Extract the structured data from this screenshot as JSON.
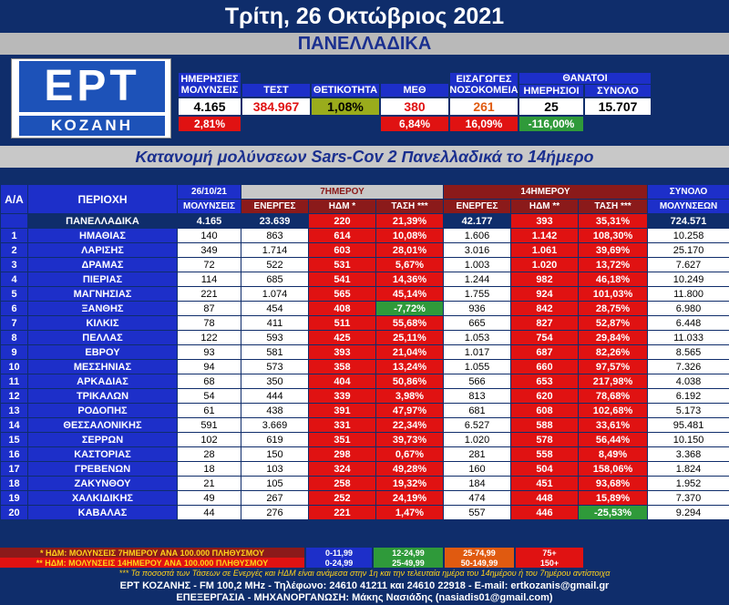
{
  "header": {
    "date": "Τρίτη, 26 Οκτώβριος 2021",
    "subtitle": "ΠΑΝΕΛΛΑΔΙΚΑ"
  },
  "logo": {
    "line1": "ΕΡΤ",
    "line2": "ΚΟΖΑΝΗ"
  },
  "top_stats": {
    "daily_label": "ΗΜΕΡΗΣΙΕΣ ΜΟΛΥΝΣΕΙΣ",
    "tests_label": "ΤΕΣΤ",
    "positivity_label": "ΘΕΤΙΚΟΤΗΤΑ",
    "icu_label": "ΜΕΘ",
    "admissions_label": "ΕΙΣΑΓΩΓΕΣ ΝΟΣΟΚΟΜΕΙΑ",
    "deaths_label": "ΘΑΝΑΤΟΙ",
    "deaths_daily_label": "ΗΜΕΡΗΣΙΟΙ",
    "deaths_total_label": "ΣΥΝΟΛΟ",
    "daily_value": "4.165",
    "tests_value": "384.967",
    "positivity_value": "1,08%",
    "icu_value": "380",
    "admissions_value": "261",
    "deaths_daily_value": "25",
    "deaths_total_value": "15.707",
    "daily_change": "2,81%",
    "icu_change": "6,84%",
    "admissions_change": "16,09%",
    "deaths_change": "-116,00%"
  },
  "table_title": "Κατανομή μολύνσεων Sars-Cov 2 Πανελλαδικά το 14ήμερο",
  "table_headers": {
    "aa": "Α/Α",
    "region": "ΠΕΡΙΟΧΗ",
    "date": "26/10/21",
    "infections": "ΜΟΛΥΝΣΕΙΣ",
    "days7": "7ΗΜΕΡΟΥ",
    "days14": "14ΗΜΕΡΟΥ",
    "active": "ΕΝΕΡΓΕΣ",
    "hdm7": "ΗΔΜ *",
    "trend": "ΤΑΣΗ ***",
    "active14": "ΕΝΕΡΓΕΣ",
    "hdm14": "ΗΔΜ **",
    "trend14": "ΤΑΣΗ ***",
    "total": "ΣΥΝΟΛΟ",
    "total2": "ΜΟΛΥΝΣΕΩΝ"
  },
  "national": {
    "name": "ΠΑΝΕΛΛΑΔΙΚΑ",
    "inf": "4.165",
    "act7": "23.639",
    "hdm7": "220",
    "tr7": "21,39%",
    "act14": "42.177",
    "hdm14": "393",
    "tr14": "35,31%",
    "total": "724.571"
  },
  "rows": [
    {
      "n": "1",
      "name": "ΗΜΑΘΙΑΣ",
      "inf": "140",
      "act7": "863",
      "hdm7": "614",
      "tr7": "10,08%",
      "act14": "1.606",
      "hdm14": "1.142",
      "tr14": "108,30%",
      "total": "10.258"
    },
    {
      "n": "2",
      "name": "ΛΑΡΙΣΗΣ",
      "inf": "349",
      "act7": "1.714",
      "hdm7": "603",
      "tr7": "28,01%",
      "act14": "3.016",
      "hdm14": "1.061",
      "tr14": "39,69%",
      "total": "25.170"
    },
    {
      "n": "3",
      "name": "ΔΡΑΜΑΣ",
      "inf": "72",
      "act7": "522",
      "hdm7": "531",
      "tr7": "5,67%",
      "act14": "1.003",
      "hdm14": "1.020",
      "tr14": "13,72%",
      "total": "7.627"
    },
    {
      "n": "4",
      "name": "ΠΙΕΡΙΑΣ",
      "inf": "114",
      "act7": "685",
      "hdm7": "541",
      "tr7": "14,36%",
      "act14": "1.244",
      "hdm14": "982",
      "tr14": "46,18%",
      "total": "10.249"
    },
    {
      "n": "5",
      "name": "ΜΑΓΝΗΣΙΑΣ",
      "inf": "221",
      "act7": "1.074",
      "hdm7": "565",
      "tr7": "45,14%",
      "act14": "1.755",
      "hdm14": "924",
      "tr14": "101,03%",
      "total": "11.800"
    },
    {
      "n": "6",
      "name": "ΞΑΝΘΗΣ",
      "inf": "87",
      "act7": "454",
      "hdm7": "408",
      "tr7": "-7,72%",
      "act14": "936",
      "hdm14": "842",
      "tr14": "28,75%",
      "total": "6.980"
    },
    {
      "n": "7",
      "name": "ΚΙΛΚΙΣ",
      "inf": "78",
      "act7": "411",
      "hdm7": "511",
      "tr7": "55,68%",
      "act14": "665",
      "hdm14": "827",
      "tr14": "52,87%",
      "total": "6.448"
    },
    {
      "n": "8",
      "name": "ΠΕΛΛΑΣ",
      "inf": "122",
      "act7": "593",
      "hdm7": "425",
      "tr7": "25,11%",
      "act14": "1.053",
      "hdm14": "754",
      "tr14": "29,84%",
      "total": "11.033"
    },
    {
      "n": "9",
      "name": "ΕΒΡΟΥ",
      "inf": "93",
      "act7": "581",
      "hdm7": "393",
      "tr7": "21,04%",
      "act14": "1.017",
      "hdm14": "687",
      "tr14": "82,26%",
      "total": "8.565"
    },
    {
      "n": "10",
      "name": "ΜΕΣΣΗΝΙΑΣ",
      "inf": "94",
      "act7": "573",
      "hdm7": "358",
      "tr7": "13,24%",
      "act14": "1.055",
      "hdm14": "660",
      "tr14": "97,57%",
      "total": "7.326"
    },
    {
      "n": "11",
      "name": "ΑΡΚΑΔΙΑΣ",
      "inf": "68",
      "act7": "350",
      "hdm7": "404",
      "tr7": "50,86%",
      "act14": "566",
      "hdm14": "653",
      "tr14": "217,98%",
      "total": "4.038"
    },
    {
      "n": "12",
      "name": "ΤΡΙΚΑΛΩΝ",
      "inf": "54",
      "act7": "444",
      "hdm7": "339",
      "tr7": "3,98%",
      "act14": "813",
      "hdm14": "620",
      "tr14": "78,68%",
      "total": "6.192"
    },
    {
      "n": "13",
      "name": "ΡΟΔΟΠΗΣ",
      "inf": "61",
      "act7": "438",
      "hdm7": "391",
      "tr7": "47,97%",
      "act14": "681",
      "hdm14": "608",
      "tr14": "102,68%",
      "total": "5.173"
    },
    {
      "n": "14",
      "name": "ΘΕΣΣΑΛΟΝΙΚΗΣ",
      "inf": "591",
      "act7": "3.669",
      "hdm7": "331",
      "tr7": "22,34%",
      "act14": "6.527",
      "hdm14": "588",
      "tr14": "33,61%",
      "total": "95.481"
    },
    {
      "n": "15",
      "name": "ΣΕΡΡΩΝ",
      "inf": "102",
      "act7": "619",
      "hdm7": "351",
      "tr7": "39,73%",
      "act14": "1.020",
      "hdm14": "578",
      "tr14": "56,44%",
      "total": "10.150"
    },
    {
      "n": "16",
      "name": "ΚΑΣΤΟΡΙΑΣ",
      "inf": "28",
      "act7": "150",
      "hdm7": "298",
      "tr7": "0,67%",
      "act14": "281",
      "hdm14": "558",
      "tr14": "8,49%",
      "total": "3.368"
    },
    {
      "n": "17",
      "name": "ΓΡΕΒΕΝΩΝ",
      "inf": "18",
      "act7": "103",
      "hdm7": "324",
      "tr7": "49,28%",
      "act14": "160",
      "hdm14": "504",
      "tr14": "158,06%",
      "total": "1.824"
    },
    {
      "n": "18",
      "name": "ΖΑΚΥΝΘΟΥ",
      "inf": "21",
      "act7": "105",
      "hdm7": "258",
      "tr7": "19,32%",
      "act14": "184",
      "hdm14": "451",
      "tr14": "93,68%",
      "total": "1.952"
    },
    {
      "n": "19",
      "name": "ΧΑΛΚΙΔΙΚΗΣ",
      "inf": "49",
      "act7": "267",
      "hdm7": "252",
      "tr7": "24,19%",
      "act14": "474",
      "hdm14": "448",
      "tr14": "15,89%",
      "total": "7.370"
    },
    {
      "n": "20",
      "name": "ΚΑΒΑΛΑΣ",
      "inf": "44",
      "act7": "276",
      "hdm7": "221",
      "tr7": "1,47%",
      "act14": "557",
      "hdm14": "446",
      "tr14": "-25,53%",
      "total": "9.294"
    }
  ],
  "legend": {
    "note7": "* ΗΔΜ: ΜΟΛΥΝΣΕΙΣ 7ΗΜΕΡΟΥ ΑΝΑ 100.000 ΠΛΗΘΥΣΜΟΥ",
    "note14": "** ΗΔΜ: ΜΟΛΥΝΣΕΙΣ 14ΗΜΕΡΟΥ ΑΝΑ 100.000 ΠΛΗΘΥΣΜΟΥ",
    "r7": [
      "0-11,99",
      "12-24,99",
      "25-74,99",
      "75+"
    ],
    "r14": [
      "0-24,99",
      "25-49,99",
      "50-149,99",
      "150+"
    ],
    "trend_note": "*** Τα ποσοστά των Τάσεων σε Ενεργές και ΗΔΜ είναι ανάμεσα στην 1η και την τελευταία ημέρα του 14ημέρου ή του 7ημέρου αντίστοιχα"
  },
  "footer": {
    "line1": "ΕΡΤ ΚΟΖΑΝΗΣ - FM 100,2 MHz - Τηλέφωνο: 24610 41211 και 24610 22918 - E-mail: ertkozanis@gmail.gr",
    "line2": "ΕΠΕΞΕΡΓΑΣΙΑ - ΜΗΧΑΝΟΡΓΑΝΩΣΗ: Μάκης Νασιάδης (nasiadis01@gmail.com)"
  },
  "colors": {
    "navy": "#0f2d6b",
    "blue": "#1d2fc9",
    "red": "#e01212",
    "darkred": "#8b1a1a",
    "green": "#2f9a3a",
    "lime": "#9aac1c",
    "yellow": "#ffd21a",
    "orange": "#e05a10"
  }
}
